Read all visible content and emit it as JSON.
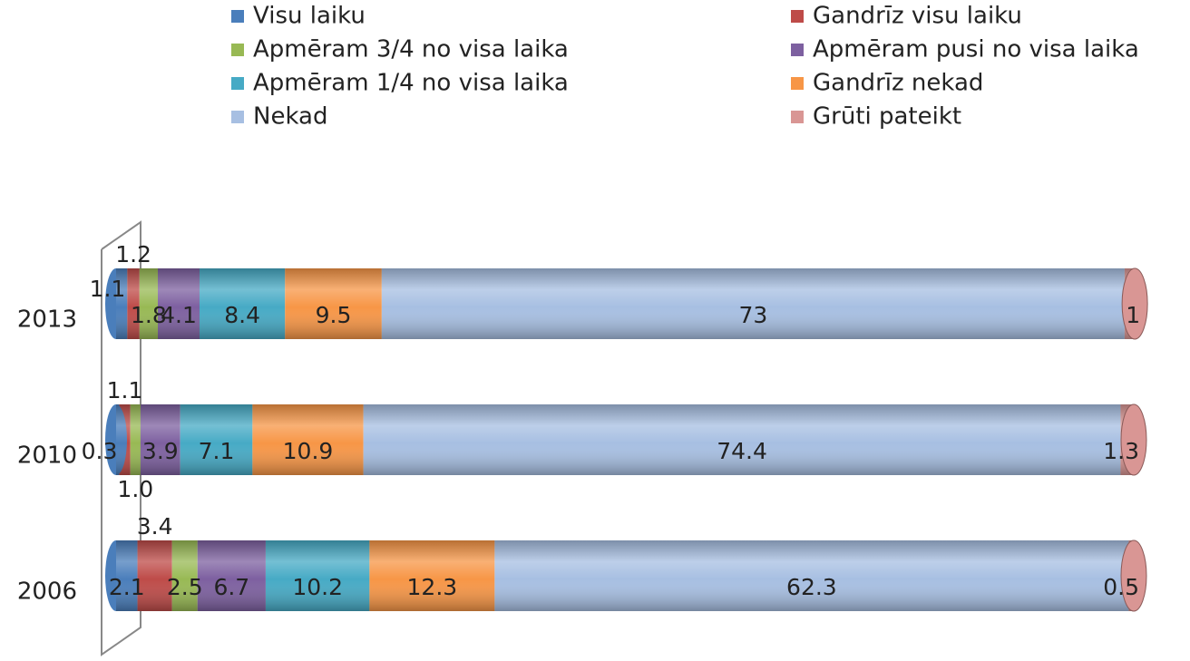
{
  "chart_data": {
    "type": "stacked-bar-horizontal",
    "categories": [
      "2013",
      "2010",
      "2006"
    ],
    "xlim": [
      0,
      100
    ],
    "legend": "top",
    "series": [
      {
        "name": "Visu laiku",
        "color": "#4a7ebb",
        "values": [
          1.1,
          0.3,
          2.1
        ]
      },
      {
        "name": "Gandrīz visu laiku",
        "color": "#be4b48",
        "values": [
          1.2,
          1.1,
          3.4
        ]
      },
      {
        "name": "Apmēram 3/4 no visa laika",
        "color": "#98b954",
        "values": [
          1.8,
          1.0,
          2.5
        ],
        "value_labels": [
          "1.8",
          "1.0",
          "2.5"
        ]
      },
      {
        "name": "Apmēram pusi no visa laika",
        "color": "#7d60a0",
        "values": [
          4.1,
          3.9,
          6.7
        ]
      },
      {
        "name": "Apmēram 1/4 no visa laika",
        "color": "#46aac5",
        "values": [
          8.4,
          7.1,
          10.2
        ]
      },
      {
        "name": "Gandrīz nekad",
        "color": "#f79646",
        "values": [
          9.5,
          10.9,
          12.3
        ]
      },
      {
        "name": "Nekad",
        "color": "#a7bfe2",
        "values": [
          73,
          74.4,
          62.3
        ]
      },
      {
        "name": "Grūti pateikt",
        "color": "#d99694",
        "values": [
          1,
          1.3,
          0.5
        ]
      }
    ]
  }
}
